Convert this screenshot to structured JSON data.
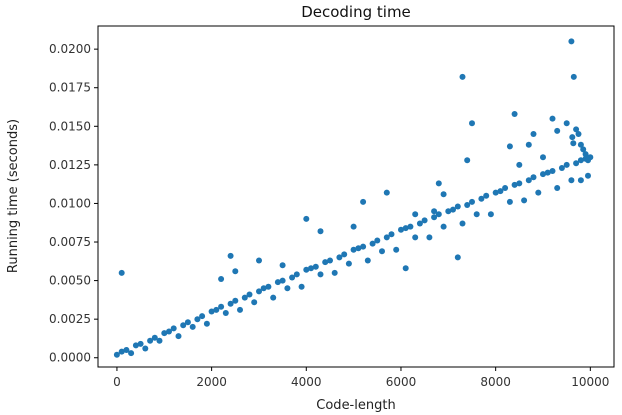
{
  "chart_data": {
    "type": "scatter",
    "title": "Decoding time",
    "xlabel": "Code-length",
    "ylabel": "Running time (seconds)",
    "xlim": [
      -400,
      10500
    ],
    "ylim": [
      -0.0006,
      0.0215
    ],
    "xticks": [
      0,
      2000,
      4000,
      6000,
      8000,
      10000
    ],
    "xtick_labels": [
      "0",
      "2000",
      "4000",
      "6000",
      "8000",
      "10000"
    ],
    "yticks": [
      0.0,
      0.0025,
      0.005,
      0.0075,
      0.01,
      0.0125,
      0.015,
      0.0175,
      0.02
    ],
    "ytick_labels": [
      "0.0000",
      "0.0025",
      "0.0050",
      "0.0075",
      "0.0100",
      "0.0125",
      "0.0150",
      "0.0175",
      "0.0200"
    ],
    "grid": false,
    "legend": "none",
    "color": "#1f77b4",
    "series": [
      {
        "x": [
          0,
          200,
          500,
          800,
          1000,
          1200,
          1500,
          1800,
          2000,
          2200,
          2500,
          2800,
          3000,
          3200,
          3500,
          3800,
          4000,
          4200,
          4500,
          4800,
          5000,
          5200,
          5500,
          5800,
          6000,
          6200,
          6500,
          6800,
          7000,
          7200,
          7500,
          7800,
          8000,
          8200,
          8500,
          8800,
          9000,
          9200,
          9500,
          9800,
          10000,
          100,
          400,
          700,
          1100,
          1400,
          1700,
          2100,
          2400,
          2700,
          3100,
          3400,
          3700,
          4100,
          4400,
          4700,
          5100,
          5400,
          5700,
          6100,
          6400,
          6700,
          7100,
          7400,
          7700,
          8100,
          8400,
          8700,
          9100,
          9400,
          9700,
          9900,
          300,
          900,
          1600,
          2300,
          2900,
          3600,
          4300,
          4900,
          5600,
          6300,
          6900,
          7600,
          8300,
          8900,
          9600,
          600,
          1300,
          1900,
          2600,
          3300,
          3900,
          4600,
          5300,
          5900,
          6600,
          7300,
          7900,
          8600,
          9300,
          9800,
          9950,
          100,
          2400,
          2500,
          3000,
          4000,
          5000,
          5200,
          6300,
          6100,
          6900,
          7200,
          7300,
          8300,
          8400,
          8700,
          9600,
          9650,
          9700,
          9750,
          9800,
          9850,
          9500,
          9900,
          9950,
          8500,
          9000,
          9200,
          7500,
          6800,
          5700,
          4300,
          3500,
          2200,
          9620,
          9640,
          7400,
          6700,
          9300,
          8800
        ],
        "y": [
          0.0002,
          0.0005,
          0.0009,
          0.0013,
          0.0016,
          0.0019,
          0.0023,
          0.0027,
          0.003,
          0.0033,
          0.0037,
          0.0041,
          0.0043,
          0.0046,
          0.005,
          0.0054,
          0.0057,
          0.0059,
          0.0063,
          0.0067,
          0.007,
          0.0072,
          0.0076,
          0.008,
          0.0083,
          0.0085,
          0.0089,
          0.0093,
          0.0095,
          0.0098,
          0.0101,
          0.0105,
          0.0107,
          0.011,
          0.0113,
          0.0117,
          0.0119,
          0.0121,
          0.0125,
          0.0128,
          0.013,
          0.0004,
          0.0008,
          0.0011,
          0.0017,
          0.0021,
          0.0025,
          0.0031,
          0.0035,
          0.0039,
          0.0045,
          0.0049,
          0.0052,
          0.0058,
          0.0062,
          0.0065,
          0.0071,
          0.0074,
          0.0078,
          0.0084,
          0.0087,
          0.0091,
          0.0096,
          0.0099,
          0.0103,
          0.0108,
          0.0112,
          0.0115,
          0.012,
          0.0123,
          0.0126,
          0.0129,
          0.0003,
          0.0011,
          0.002,
          0.0029,
          0.0036,
          0.0045,
          0.0054,
          0.0061,
          0.0069,
          0.0078,
          0.0085,
          0.0093,
          0.0101,
          0.0107,
          0.0115,
          0.0006,
          0.0014,
          0.0022,
          0.0031,
          0.0039,
          0.0046,
          0.0055,
          0.0063,
          0.007,
          0.0078,
          0.0087,
          0.0093,
          0.0102,
          0.011,
          0.0115,
          0.0118,
          0.0055,
          0.0066,
          0.0056,
          0.0063,
          0.009,
          0.0085,
          0.0101,
          0.0093,
          0.0058,
          0.0106,
          0.0065,
          0.0182,
          0.0137,
          0.0158,
          0.0138,
          0.0205,
          0.0182,
          0.0148,
          0.0145,
          0.0138,
          0.0135,
          0.0152,
          0.0132,
          0.0128,
          0.0125,
          0.013,
          0.0155,
          0.0152,
          0.0113,
          0.0107,
          0.0082,
          0.006,
          0.0051,
          0.0143,
          0.0139,
          0.0128,
          0.0095,
          0.0147,
          0.0145
        ]
      }
    ]
  }
}
